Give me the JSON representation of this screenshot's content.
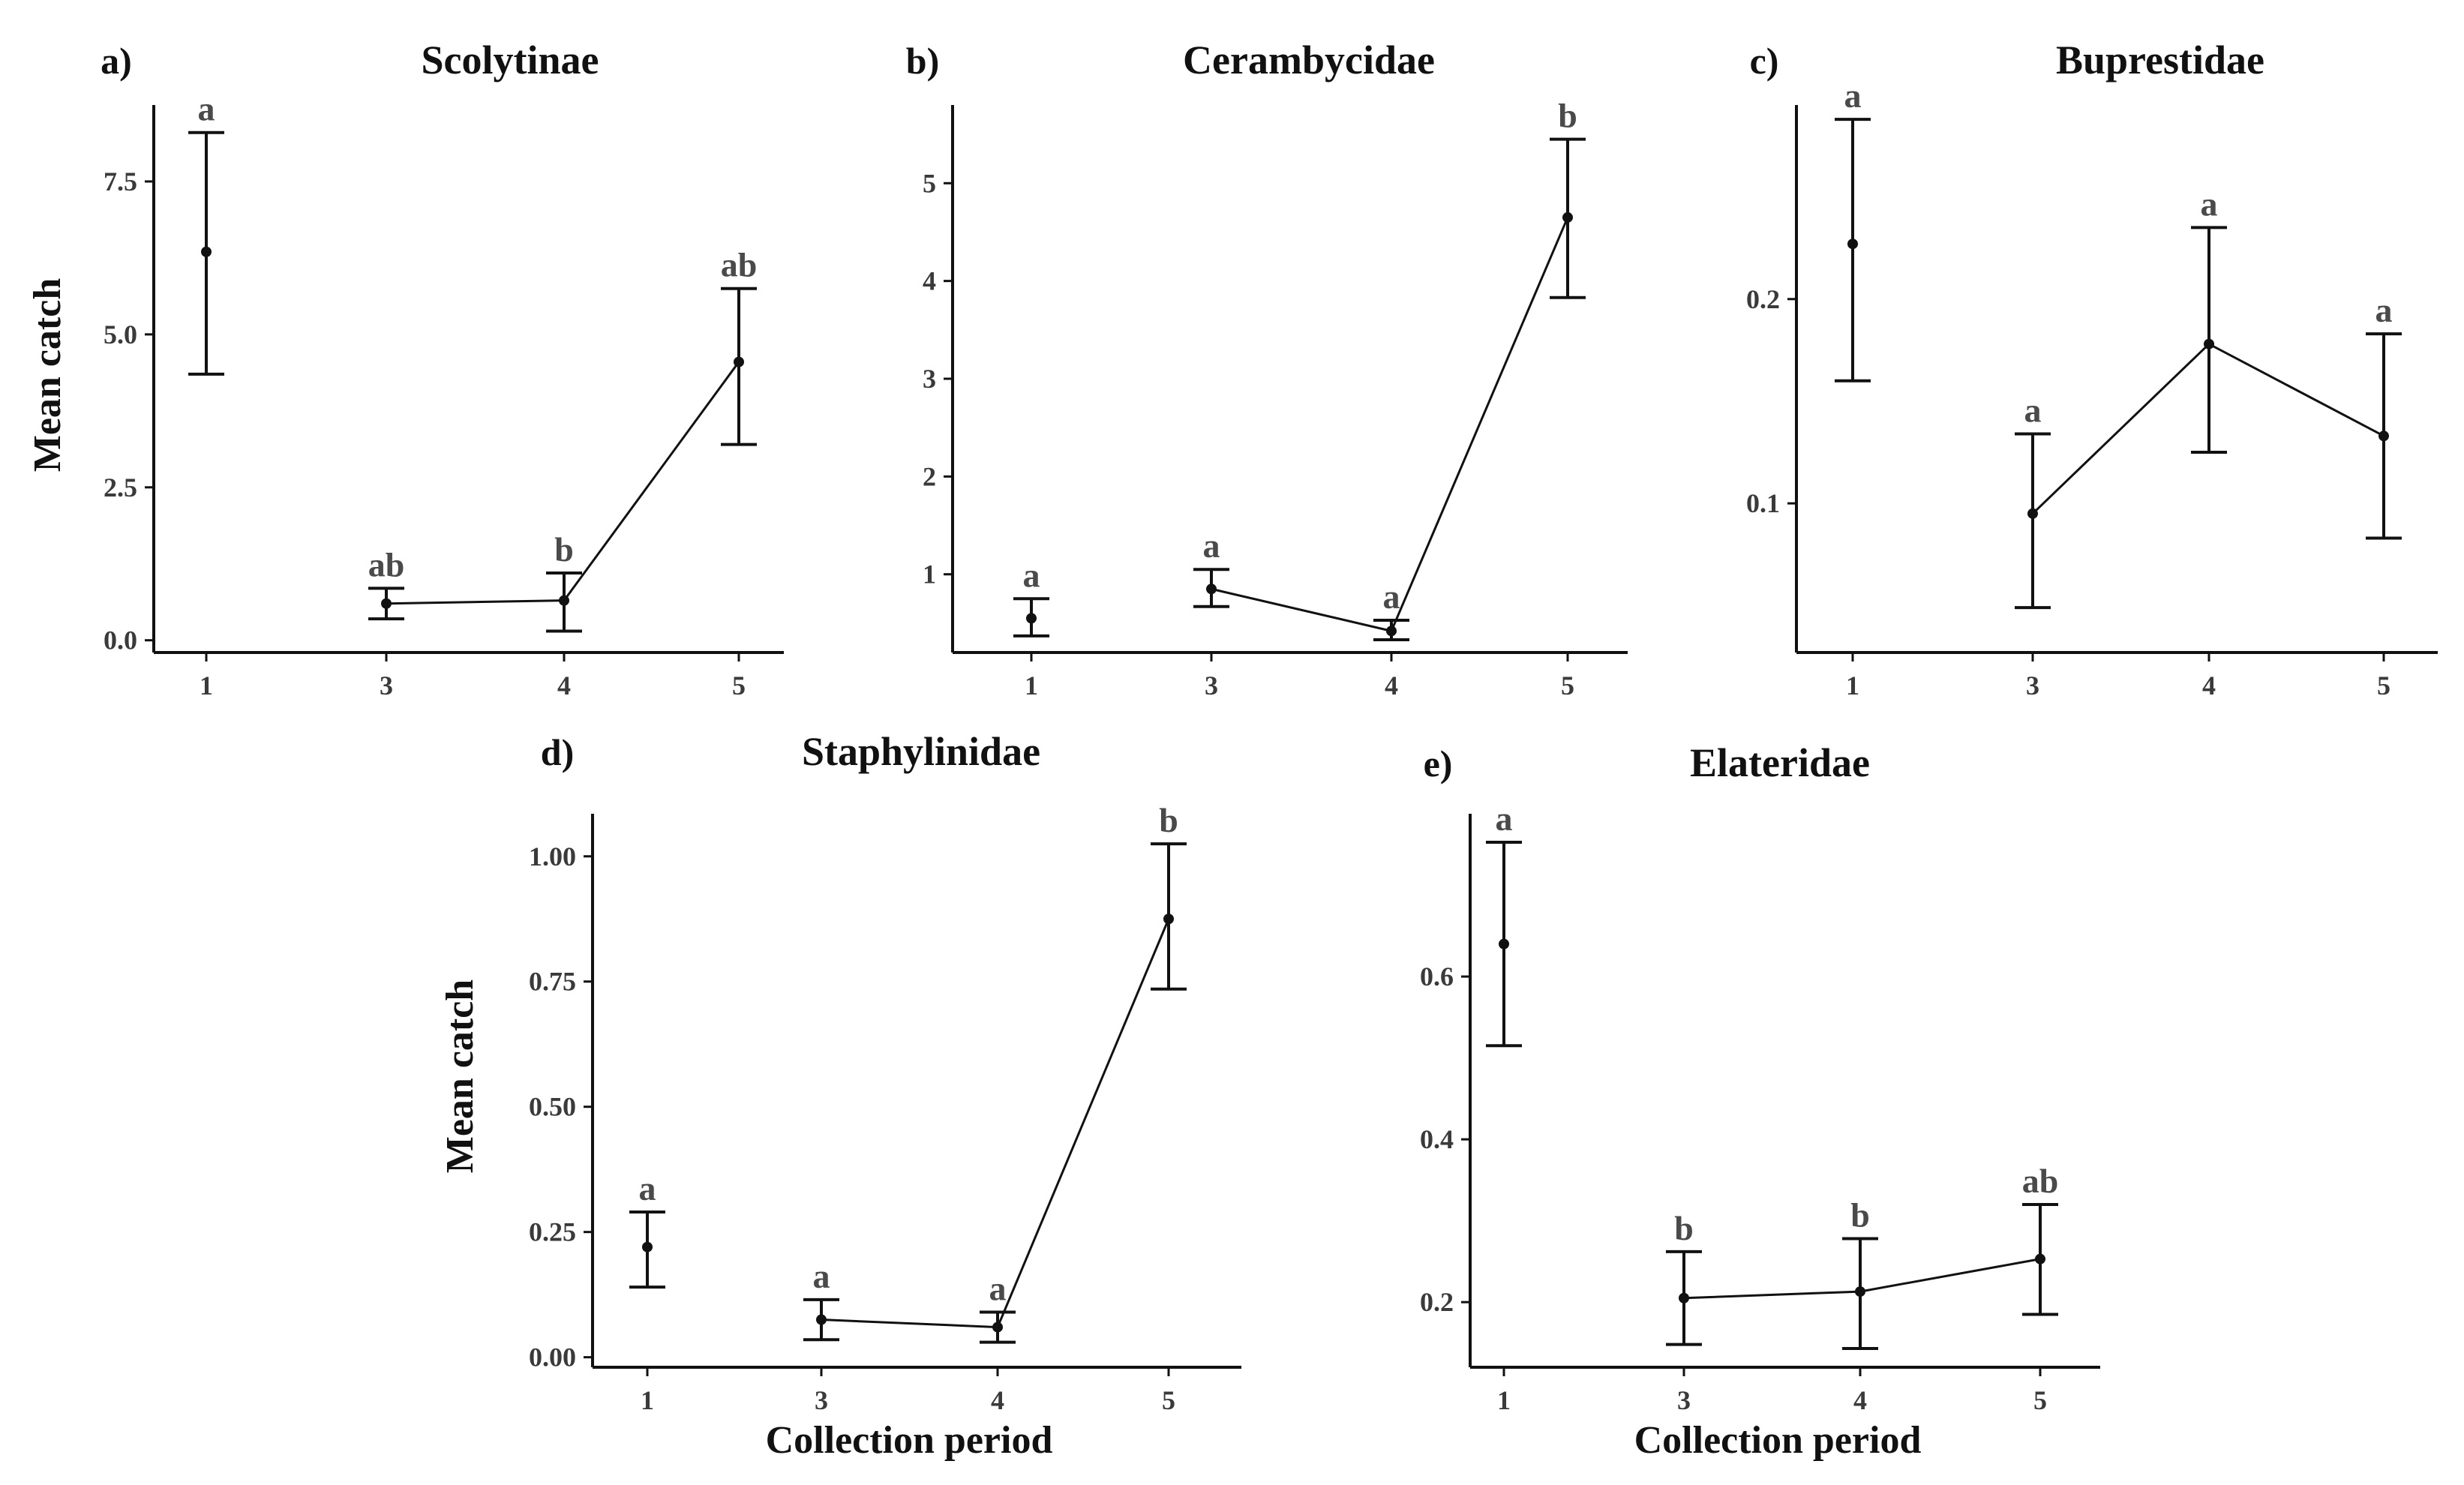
{
  "chart_data": [
    {
      "panel": "a)",
      "type": "line",
      "title": "Scolytinae",
      "xlabel": "",
      "ylabel": "Mean catch",
      "categories": [
        "1",
        "3",
        "4",
        "5"
      ],
      "yticks": [
        "0.0",
        "2.5",
        "5.0",
        "7.5"
      ],
      "ylim": [
        -0.2,
        8.75
      ],
      "connected_from_index": 1,
      "series": [
        {
          "mean": [
            6.35,
            0.6,
            0.65,
            4.55
          ],
          "lower": [
            4.35,
            0.35,
            0.15,
            3.2
          ],
          "upper": [
            8.3,
            0.85,
            1.1,
            5.75
          ],
          "letters": [
            "a",
            "ab",
            "b",
            "ab"
          ]
        }
      ]
    },
    {
      "panel": "b)",
      "type": "line",
      "title": "Cerambycidae",
      "xlabel": "",
      "ylabel": "",
      "categories": [
        "1",
        "3",
        "4",
        "5"
      ],
      "yticks": [
        "1",
        "2",
        "3",
        "4",
        "5"
      ],
      "ylim": [
        0.2,
        5.8
      ],
      "connected_from_index": 1,
      "series": [
        {
          "mean": [
            0.55,
            0.85,
            0.42,
            4.65
          ],
          "lower": [
            0.37,
            0.67,
            0.33,
            3.83
          ],
          "upper": [
            0.75,
            1.05,
            0.53,
            5.45
          ],
          "letters": [
            "a",
            "a",
            "a",
            "b"
          ]
        }
      ]
    },
    {
      "panel": "c)",
      "type": "line",
      "title": "Buprestidae",
      "xlabel": "",
      "ylabel": "",
      "categories": [
        "1",
        "3",
        "4",
        "5"
      ],
      "yticks": [
        "0.1",
        "0.2"
      ],
      "ylim": [
        0.027,
        0.295
      ],
      "connected_from_index": 1,
      "series": [
        {
          "mean": [
            0.227,
            0.095,
            0.178,
            0.133
          ],
          "lower": [
            0.16,
            0.049,
            0.125,
            0.083
          ],
          "upper": [
            0.288,
            0.134,
            0.235,
            0.183
          ],
          "letters": [
            "a",
            "a",
            "a",
            "a"
          ]
        }
      ]
    },
    {
      "panel": "d)",
      "type": "line",
      "title": "Staphylinidae",
      "xlabel": "Collection period",
      "ylabel": "Mean catch",
      "categories": [
        "1",
        "3",
        "4",
        "5"
      ],
      "yticks": [
        "0.00",
        "0.25",
        "0.50",
        "0.75",
        "1.00"
      ],
      "ylim": [
        -0.02,
        1.085
      ],
      "connected_from_index": 1,
      "series": [
        {
          "mean": [
            0.22,
            0.075,
            0.06,
            0.875
          ],
          "lower": [
            0.14,
            0.035,
            0.03,
            0.735
          ],
          "upper": [
            0.29,
            0.115,
            0.09,
            1.025
          ],
          "letters": [
            "a",
            "a",
            "a",
            "b"
          ]
        }
      ]
    },
    {
      "panel": "e)",
      "type": "line",
      "title": "Elateridae",
      "xlabel": "Collection period",
      "ylabel": "",
      "categories": [
        "1",
        "3",
        "4",
        "5"
      ],
      "yticks": [
        "0.2",
        "0.4",
        "0.6"
      ],
      "ylim": [
        0.12,
        0.8
      ],
      "connected_from_index": 1,
      "series": [
        {
          "mean": [
            0.64,
            0.205,
            0.213,
            0.253
          ],
          "lower": [
            0.515,
            0.148,
            0.143,
            0.185
          ],
          "upper": [
            0.765,
            0.262,
            0.278,
            0.32
          ],
          "letters": [
            "a",
            "b",
            "b",
            "ab"
          ]
        }
      ]
    }
  ]
}
